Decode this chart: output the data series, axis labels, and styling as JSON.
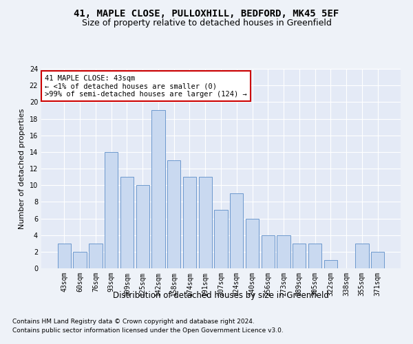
{
  "title": "41, MAPLE CLOSE, PULLOXHILL, BEDFORD, MK45 5EF",
  "subtitle": "Size of property relative to detached houses in Greenfield",
  "xlabel": "Distribution of detached houses by size in Greenfield",
  "ylabel": "Number of detached properties",
  "categories": [
    "43sqm",
    "60sqm",
    "76sqm",
    "93sqm",
    "109sqm",
    "125sqm",
    "142sqm",
    "158sqm",
    "174sqm",
    "191sqm",
    "207sqm",
    "224sqm",
    "240sqm",
    "256sqm",
    "273sqm",
    "289sqm",
    "305sqm",
    "322sqm",
    "338sqm",
    "355sqm",
    "371sqm"
  ],
  "values": [
    3,
    2,
    3,
    14,
    11,
    10,
    19,
    13,
    11,
    11,
    7,
    9,
    6,
    4,
    4,
    3,
    3,
    1,
    0,
    3,
    2
  ],
  "bar_color": "#c9d9f0",
  "bar_edge_color": "#5b8dc8",
  "annotation_line1": "41 MAPLE CLOSE: 43sqm",
  "annotation_line2": "← <1% of detached houses are smaller (0)",
  "annotation_line3": ">99% of semi-detached houses are larger (124) →",
  "annotation_box_color": "#ffffff",
  "annotation_box_edge_color": "#cc0000",
  "ylim": [
    0,
    24
  ],
  "yticks": [
    0,
    2,
    4,
    6,
    8,
    10,
    12,
    14,
    16,
    18,
    20,
    22,
    24
  ],
  "footnote1": "Contains HM Land Registry data © Crown copyright and database right 2024.",
  "footnote2": "Contains public sector information licensed under the Open Government Licence v3.0.",
  "background_color": "#eef2f8",
  "plot_bg_color": "#e4eaf6",
  "grid_color": "#ffffff",
  "title_fontsize": 10,
  "subtitle_fontsize": 9,
  "xlabel_fontsize": 8.5,
  "ylabel_fontsize": 8,
  "tick_fontsize": 7,
  "annotation_fontsize": 7.5,
  "footnote_fontsize": 6.5
}
